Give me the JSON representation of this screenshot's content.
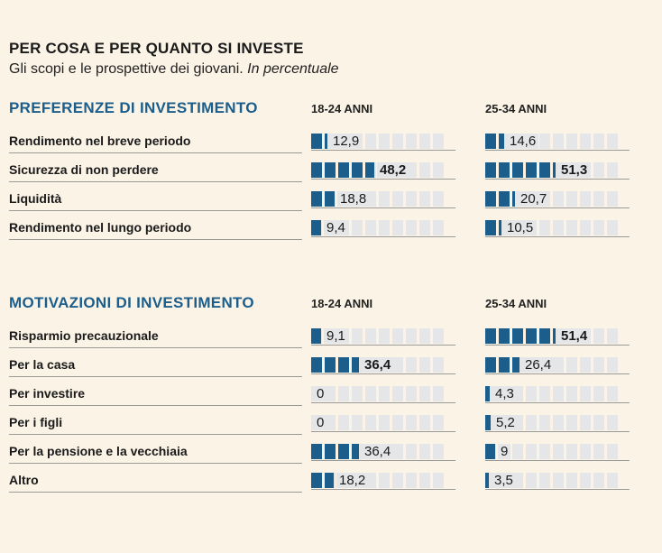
{
  "title": "PER COSA E PER QUANTO SI INVESTE",
  "subtitle": "Gli scopi e le prospettive dei giovani.",
  "subtitle_unit": "In percentuale",
  "colors": {
    "bar": "#1b5e8c",
    "empty": "#e4e6e8",
    "heading": "#1b5e8c"
  },
  "chart_data": [
    {
      "type": "bar",
      "title": "PREFERENZE DI INVESTIMENTO",
      "categories": [
        "Rendimento nel breve periodo",
        "Sicurezza di non perdere",
        "Liquidità",
        "Rendimento nel lungo periodo"
      ],
      "series": [
        {
          "name": "18-24 ANNI",
          "values": [
            12.9,
            48.2,
            18.8,
            9.4
          ],
          "labels": [
            "12,9",
            "48,2",
            "18,8",
            "9,4"
          ]
        },
        {
          "name": "25-34 ANNI",
          "values": [
            14.6,
            51.3,
            20.7,
            10.5
          ],
          "labels": [
            "14,6",
            "51,3",
            "20,7",
            "10,5"
          ]
        }
      ],
      "bold": [
        false,
        true,
        false,
        false
      ],
      "ylim": [
        0,
        100
      ]
    },
    {
      "type": "bar",
      "title": "MOTIVAZIONI DI INVESTIMENTO",
      "categories": [
        "Risparmio precauzionale",
        "Per la casa",
        "Per investire",
        "Per i figli",
        "Per la pensione e la vecchiaia",
        "Altro"
      ],
      "series": [
        {
          "name": "18-24 ANNI",
          "values": [
            9.1,
            36.4,
            0,
            0,
            36.4,
            18.2
          ],
          "labels": [
            "9,1",
            "36,4",
            "0",
            "0",
            "36,4",
            "18,2"
          ],
          "bold": [
            false,
            true,
            false,
            false,
            false,
            false
          ]
        },
        {
          "name": "25-34 ANNI",
          "values": [
            51.4,
            26.4,
            4.3,
            5.2,
            9,
            3.5
          ],
          "labels": [
            "51,4",
            "26,4",
            "4,3",
            "5,2",
            "9",
            "3,5"
          ],
          "bold": [
            true,
            false,
            false,
            false,
            false,
            false
          ]
        }
      ],
      "ylim": [
        0,
        100
      ]
    }
  ]
}
